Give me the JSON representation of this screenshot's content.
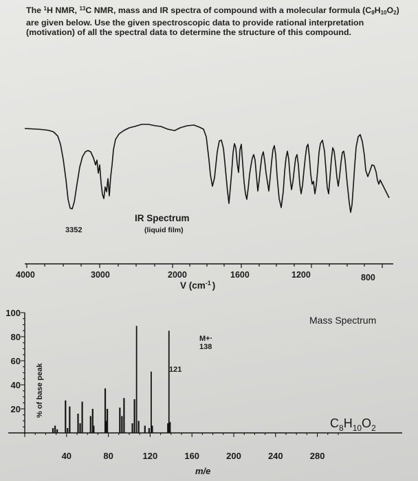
{
  "problem": {
    "intro_1": "The ",
    "h_sup": "1",
    "intro_2": "H NMR, ",
    "c_sup": "13",
    "intro_3": "C NMR, mass and IR spectra of compound with a molecular formula (C",
    "f_c": "8",
    "f_h_label": "H",
    "f_h": "10",
    "f_o_label": "O",
    "f_o": "2",
    "intro_4": ") are given below. Use the given spectroscopic data to provide rational interpretation (motivation) of all the spectral data to determine the structure of this compound."
  },
  "ir": {
    "title": "IR Spectrum",
    "subtitle": "(liquid film)",
    "peak_label": "3352",
    "x_label_main": "V (cm",
    "x_label_sup": "-1",
    "x_label_end": ")",
    "ticks": [
      "4000",
      "3000",
      "2000",
      "1600",
      "1200",
      "800"
    ]
  },
  "chart_data": {
    "type": "bar",
    "title": "Mass Spectrum",
    "xlabel": "m/e",
    "ylabel": "% of base peak",
    "xlim": [
      0,
      300
    ],
    "ylim": [
      0,
      100
    ],
    "x_ticks": [
      "40",
      "80",
      "120",
      "160",
      "200",
      "240",
      "280"
    ],
    "y_ticks": [
      "100",
      "80",
      "60",
      "40",
      "20"
    ],
    "formula": {
      "c": "C",
      "c_n": "8",
      "h": "H",
      "h_n": "10",
      "o": "O",
      "o_n": "2"
    },
    "annotations": [
      {
        "text": "121",
        "x": 121
      },
      {
        "text": "M+·",
        "x": 138
      },
      {
        "text": "138",
        "x": 138
      }
    ],
    "peaks": [
      {
        "x": 27,
        "y": 4
      },
      {
        "x": 29,
        "y": 6
      },
      {
        "x": 31,
        "y": 3
      },
      {
        "x": 39,
        "y": 27
      },
      {
        "x": 41,
        "y": 4
      },
      {
        "x": 43,
        "y": 22
      },
      {
        "x": 51,
        "y": 16
      },
      {
        "x": 53,
        "y": 8
      },
      {
        "x": 55,
        "y": 26
      },
      {
        "x": 63,
        "y": 14
      },
      {
        "x": 65,
        "y": 20
      },
      {
        "x": 66,
        "y": 6
      },
      {
        "x": 77,
        "y": 37
      },
      {
        "x": 78,
        "y": 10
      },
      {
        "x": 79,
        "y": 20
      },
      {
        "x": 91,
        "y": 21
      },
      {
        "x": 93,
        "y": 14
      },
      {
        "x": 95,
        "y": 29
      },
      {
        "x": 103,
        "y": 8
      },
      {
        "x": 105,
        "y": 28
      },
      {
        "x": 107,
        "y": 89
      },
      {
        "x": 109,
        "y": 10
      },
      {
        "x": 115,
        "y": 6
      },
      {
        "x": 119,
        "y": 4
      },
      {
        "x": 121,
        "y": 51
      },
      {
        "x": 122,
        "y": 6
      },
      {
        "x": 137,
        "y": 8
      },
      {
        "x": 138,
        "y": 85
      },
      {
        "x": 139,
        "y": 9
      }
    ]
  }
}
